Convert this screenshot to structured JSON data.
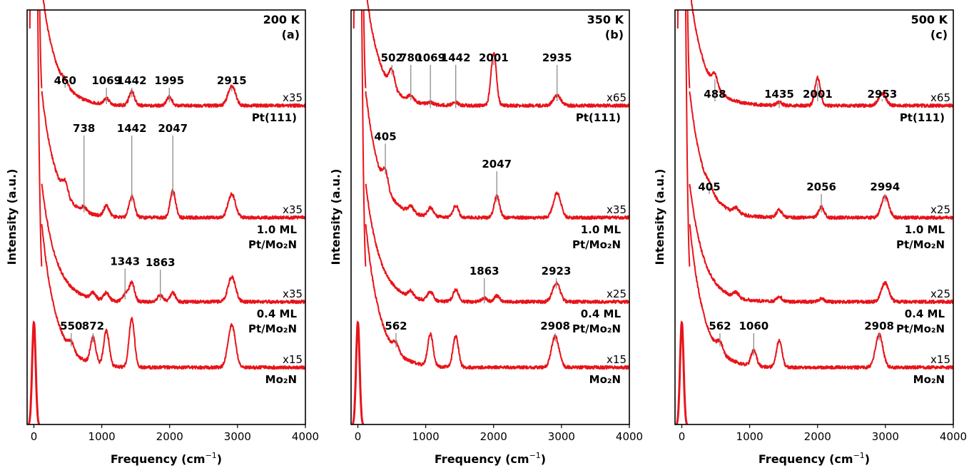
{
  "colors": {
    "trace": "#e8141a",
    "peak_line": "#8c8c8c"
  },
  "chart_data": [
    {
      "type": "line",
      "panel_id": "a",
      "title_lines": [
        "200 K",
        "(a)"
      ],
      "xlabel": "Frequency (cm",
      "xlabel_sup": "−1",
      "xlabel_end": ")",
      "ylabel": "Intensity (a.u.)",
      "xlim": [
        -100,
        4000
      ],
      "xticks": [
        "0",
        "1000",
        "2000",
        "3000",
        "4000"
      ],
      "grid": false,
      "series": [
        {
          "label_lines": [
            "Pt(111)"
          ],
          "scale": "x35",
          "peaks": [
            {
              "x": 460,
              "label": "460",
              "height": 0.22
            },
            {
              "x": 1069,
              "label": "1069",
              "height": 0.3
            },
            {
              "x": 1442,
              "label": "1442",
              "height": 0.7
            },
            {
              "x": 1995,
              "label": "1995",
              "height": 0.45
            },
            {
              "x": 2915,
              "label": "2915",
              "height": 1.0
            }
          ]
        },
        {
          "label_lines": [
            "1.0 ML",
            "Pt/Mo₂N"
          ],
          "scale": "x35",
          "peaks": [
            {
              "x": 460,
              "label": "",
              "height": 0.6
            },
            {
              "x": 738,
              "label": "738",
              "height": 0.2
            },
            {
              "x": 1069,
              "label": "",
              "height": 0.5
            },
            {
              "x": 1442,
              "label": "1442",
              "height": 1.0
            },
            {
              "x": 2047,
              "label": "2047",
              "height": 1.25
            },
            {
              "x": 2915,
              "label": "",
              "height": 1.1
            }
          ]
        },
        {
          "label_lines": [
            "0.4 ML",
            "Pt/Mo₂N"
          ],
          "scale": "x35",
          "peaks": [
            {
              "x": 872,
              "label": "",
              "height": 0.3
            },
            {
              "x": 1069,
              "label": "",
              "height": 0.4
            },
            {
              "x": 1343,
              "label": "1343",
              "height": 0.35
            },
            {
              "x": 1442,
              "label": "",
              "height": 0.95
            },
            {
              "x": 1863,
              "label": "1863",
              "height": 0.35
            },
            {
              "x": 2047,
              "label": "",
              "height": 0.45
            },
            {
              "x": 2915,
              "label": "",
              "height": 1.25
            }
          ]
        },
        {
          "label_lines": [
            "Mo₂N"
          ],
          "scale": "x15",
          "peaks": [
            {
              "x": 550,
              "label": "550",
              "height": 0.35
            },
            {
              "x": 872,
              "label": "872",
              "height": 1.1
            },
            {
              "x": 1069,
              "label": "",
              "height": 1.45
            },
            {
              "x": 1442,
              "label": "",
              "height": 2.0
            },
            {
              "x": 2915,
              "label": "",
              "height": 1.75
            }
          ]
        }
      ]
    },
    {
      "type": "line",
      "panel_id": "b",
      "title_lines": [
        "350 K",
        "(b)"
      ],
      "xlabel": "Frequency (cm",
      "xlabel_sup": "−1",
      "xlabel_end": ")",
      "ylabel": "Intensity (a.u.)",
      "xlim": [
        -100,
        4000
      ],
      "xticks": [
        "0",
        "1000",
        "2000",
        "3000",
        "4000"
      ],
      "grid": false,
      "series": [
        {
          "label_lines": [
            "Pt(111)"
          ],
          "scale": "x65",
          "peaks": [
            {
              "x": 502,
              "label": "502",
              "height": 0.9
            },
            {
              "x": 780,
              "label": "780",
              "height": 0.3
            },
            {
              "x": 1069,
              "label": "1069",
              "height": 0.1
            },
            {
              "x": 1442,
              "label": "1442",
              "height": 0.15
            },
            {
              "x": 2001,
              "label": "2001",
              "height": 2.6
            },
            {
              "x": 2935,
              "label": "2935",
              "height": 0.5
            }
          ]
        },
        {
          "label_lines": [
            "1.0 ML",
            "Pt/Mo₂N"
          ],
          "scale": "x35",
          "peaks": [
            {
              "x": 405,
              "label": "405",
              "height": 0.8
            },
            {
              "x": 780,
              "label": "",
              "height": 0.3
            },
            {
              "x": 1069,
              "label": "",
              "height": 0.4
            },
            {
              "x": 1442,
              "label": "",
              "height": 0.55
            },
            {
              "x": 2047,
              "label": "2047",
              "height": 1.0
            },
            {
              "x": 2935,
              "label": "",
              "height": 1.15
            }
          ]
        },
        {
          "label_lines": [
            "0.4 ML",
            "Pt/Mo₂N"
          ],
          "scale": "x25",
          "peaks": [
            {
              "x": 780,
              "label": "",
              "height": 0.3
            },
            {
              "x": 1069,
              "label": "",
              "height": 0.45
            },
            {
              "x": 1442,
              "label": "",
              "height": 0.6
            },
            {
              "x": 1863,
              "label": "1863",
              "height": 0.2
            },
            {
              "x": 2047,
              "label": "",
              "height": 0.3
            },
            {
              "x": 2923,
              "label": "2923",
              "height": 0.95
            }
          ]
        },
        {
          "label_lines": [
            "Mo₂N"
          ],
          "scale": "x15",
          "peaks": [
            {
              "x": 562,
              "label": "562",
              "height": 0.35
            },
            {
              "x": 1069,
              "label": "",
              "height": 1.3
            },
            {
              "x": 1442,
              "label": "",
              "height": 1.3
            },
            {
              "x": 2908,
              "label": "2908",
              "height": 1.3
            }
          ]
        }
      ]
    },
    {
      "type": "line",
      "panel_id": "c",
      "title_lines": [
        "500 K",
        "(c)"
      ],
      "xlabel": "Frequency (cm",
      "xlabel_sup": "−1",
      "xlabel_end": ")",
      "ylabel": "Intensity (a.u.)",
      "xlim": [
        -100,
        4000
      ],
      "xticks": [
        "0",
        "1000",
        "2000",
        "3000",
        "4000"
      ],
      "grid": false,
      "series": [
        {
          "label_lines": [
            "Pt(111)"
          ],
          "scale": "x65",
          "peaks": [
            {
              "x": 488,
              "label": "488",
              "height": 0.6
            },
            {
              "x": 1435,
              "label": "1435",
              "height": 0.15
            },
            {
              "x": 2001,
              "label": "2001",
              "height": 1.4
            },
            {
              "x": 2953,
              "label": "2953",
              "height": 0.6
            }
          ]
        },
        {
          "label_lines": [
            "1.0 ML",
            "Pt/Mo₂N"
          ],
          "scale": "x25",
          "peaks": [
            {
              "x": 405,
              "label": "405",
              "height": 0.2
            },
            {
              "x": 800,
              "label": "",
              "height": 0.25
            },
            {
              "x": 1435,
              "label": "",
              "height": 0.35
            },
            {
              "x": 2056,
              "label": "2056",
              "height": 0.5
            },
            {
              "x": 2994,
              "label": "2994",
              "height": 1.0
            }
          ]
        },
        {
          "label_lines": [
            "0.4 ML",
            "Pt/Mo₂N"
          ],
          "scale": "x25",
          "peaks": [
            {
              "x": 800,
              "label": "",
              "height": 0.25
            },
            {
              "x": 1435,
              "label": "",
              "height": 0.25
            },
            {
              "x": 2056,
              "label": "",
              "height": 0.15
            },
            {
              "x": 2994,
              "label": "",
              "height": 0.95
            }
          ]
        },
        {
          "label_lines": [
            "Mo₂N"
          ],
          "scale": "x15",
          "peaks": [
            {
              "x": 562,
              "label": "562",
              "height": 0.4
            },
            {
              "x": 1060,
              "label": "1060",
              "height": 0.65
            },
            {
              "x": 1435,
              "label": "",
              "height": 1.1
            },
            {
              "x": 2908,
              "label": "2908",
              "height": 1.35
            }
          ]
        }
      ]
    }
  ]
}
